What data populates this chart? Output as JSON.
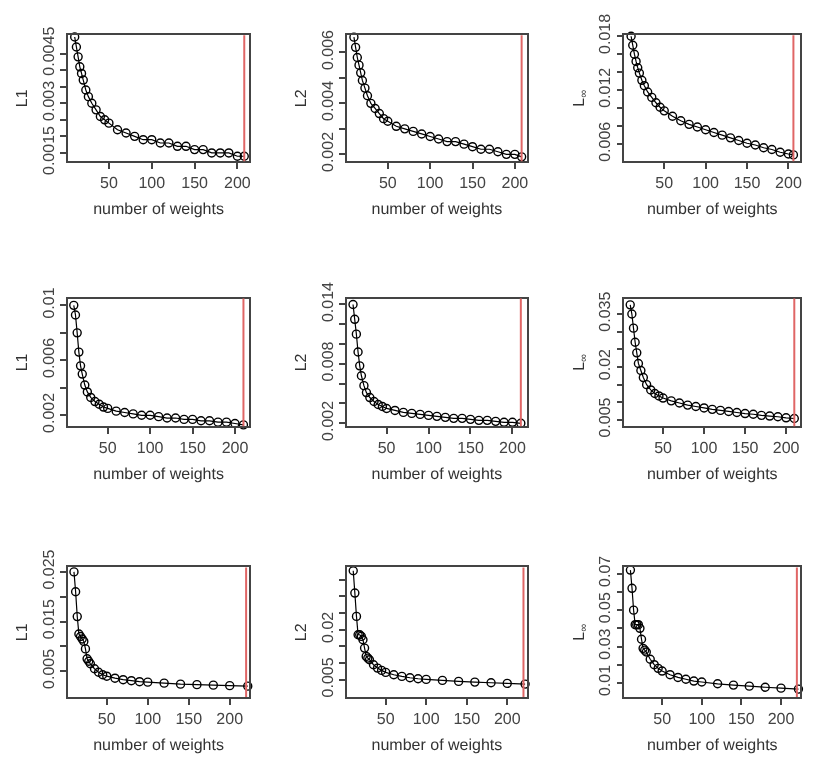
{
  "chart_data": [
    {
      "type": "line",
      "xlabel": "number of weights",
      "ylabel": "L1",
      "marker": "circle",
      "xlim": [
        2,
        214
      ],
      "xticks": [
        50,
        100,
        150,
        200
      ],
      "ylim": [
        0.00125,
        0.00505
      ],
      "yticks": [
        0.0015,
        {
          "value": 0.002,
          "label": null
        },
        {
          "value": 0.0025,
          "label": null
        },
        0.003,
        {
          "value": 0.0035,
          "label": null
        },
        {
          "value": 0.004,
          "label": null
        },
        0.0045
      ],
      "ref_lines": [
        {
          "axis": "x",
          "value": 208,
          "color": "#e06666"
        }
      ],
      "x": [
        10,
        12,
        14,
        16,
        18,
        20,
        23,
        26,
        30,
        35,
        40,
        45,
        50,
        60,
        70,
        80,
        90,
        100,
        110,
        120,
        130,
        140,
        150,
        160,
        170,
        180,
        190,
        200,
        208
      ],
      "series": [
        {
          "color": "#000000",
          "values": [
            0.005,
            0.0047,
            0.0044,
            0.0041,
            0.0039,
            0.0037,
            0.0034,
            0.0032,
            0.003,
            0.0028,
            0.0026,
            0.0025,
            0.0024,
            0.0022,
            0.0021,
            0.002,
            0.0019,
            0.0019,
            0.0018,
            0.0018,
            0.0017,
            0.0017,
            0.0016,
            0.0016,
            0.0015,
            0.0015,
            0.0015,
            0.0014,
            0.0014
          ]
        }
      ]
    },
    {
      "type": "line",
      "xlabel": "number of weights",
      "ylabel": "L2",
      "marker": "circle",
      "xlim": [
        2,
        214
      ],
      "xticks": [
        50,
        100,
        150,
        200
      ],
      "ylim": [
        0.00173,
        0.00667
      ],
      "yticks": [
        0.002,
        {
          "value": 0.003,
          "label": null
        },
        0.004,
        {
          "value": 0.005,
          "label": null
        },
        0.006
      ],
      "ref_lines": [
        {
          "axis": "x",
          "value": 208,
          "color": "#e06666"
        }
      ],
      "x": [
        10,
        12,
        14,
        16,
        18,
        20,
        23,
        26,
        30,
        35,
        40,
        45,
        50,
        60,
        70,
        80,
        90,
        100,
        110,
        120,
        130,
        140,
        150,
        160,
        170,
        180,
        190,
        200,
        208
      ],
      "series": [
        {
          "color": "#000000",
          "values": [
            0.0066,
            0.0062,
            0.0058,
            0.0055,
            0.0052,
            0.0049,
            0.0046,
            0.0043,
            0.004,
            0.0038,
            0.0036,
            0.0034,
            0.0033,
            0.0031,
            0.003,
            0.0029,
            0.0028,
            0.0027,
            0.0026,
            0.0025,
            0.0025,
            0.0024,
            0.0023,
            0.0022,
            0.0022,
            0.0021,
            0.002,
            0.002,
            0.0019
          ]
        }
      ]
    },
    {
      "type": "line",
      "xlabel": "number of weights",
      "ylabel": "L$_{∞}$",
      "marker": "circle",
      "xlim": [
        2,
        214
      ],
      "xticks": [
        50,
        100,
        150,
        200
      ],
      "ylim": [
        0.0041,
        0.0181
      ],
      "yticks": [
        0.006,
        {
          "value": 0.008,
          "label": null
        },
        {
          "value": 0.01,
          "label": null
        },
        0.012,
        {
          "value": 0.014,
          "label": null
        },
        {
          "value": 0.016,
          "label": null
        },
        0.018
      ],
      "ref_lines": [
        {
          "axis": "x",
          "value": 206,
          "color": "#e06666"
        }
      ],
      "x": [
        10,
        12,
        14,
        16,
        18,
        20,
        23,
        26,
        30,
        35,
        40,
        45,
        50,
        60,
        70,
        80,
        90,
        100,
        110,
        120,
        130,
        140,
        150,
        160,
        170,
        180,
        190,
        200,
        206
      ],
      "series": [
        {
          "color": "#000000",
          "values": [
            0.018,
            0.017,
            0.016,
            0.0152,
            0.0145,
            0.0139,
            0.0131,
            0.0125,
            0.0118,
            0.0112,
            0.0106,
            0.0101,
            0.0097,
            0.0091,
            0.0086,
            0.0082,
            0.0079,
            0.0076,
            0.0073,
            0.007,
            0.0067,
            0.0064,
            0.0061,
            0.0059,
            0.0056,
            0.0054,
            0.0051,
            0.0049,
            0.0048
          ]
        }
      ]
    },
    {
      "type": "line",
      "xlabel": "number of weights",
      "ylabel": "L1",
      "marker": "circle",
      "xlim": [
        3,
        217
      ],
      "xticks": [
        50,
        100,
        150,
        200
      ],
      "ylim": [
        0.0012,
        0.0105
      ],
      "yticks": [
        0.002,
        {
          "value": 0.004,
          "label": null
        },
        0.006,
        {
          "value": 0.008,
          "label": null
        },
        0.01
      ],
      "ref_lines": [
        {
          "axis": "x",
          "value": 210,
          "color": "#e06666"
        }
      ],
      "x": [
        10,
        12,
        14,
        16,
        18,
        20,
        23,
        26,
        30,
        35,
        40,
        45,
        50,
        60,
        70,
        80,
        90,
        100,
        110,
        120,
        130,
        140,
        150,
        160,
        170,
        180,
        190,
        200,
        210
      ],
      "series": [
        {
          "color": "#000000",
          "values": [
            0.01,
            0.0093,
            0.008,
            0.0066,
            0.0056,
            0.005,
            0.0042,
            0.0037,
            0.0033,
            0.003,
            0.0028,
            0.0026,
            0.0025,
            0.0023,
            0.0022,
            0.0021,
            0.002,
            0.002,
            0.0019,
            0.0018,
            0.0018,
            0.0017,
            0.0017,
            0.0016,
            0.0016,
            0.0015,
            0.0015,
            0.0014,
            0.0013
          ]
        }
      ]
    },
    {
      "type": "line",
      "xlabel": "number of weights",
      "ylabel": "L2",
      "marker": "circle",
      "xlim": [
        3,
        217
      ],
      "xticks": [
        50,
        100,
        150,
        200
      ],
      "ylim": [
        0.0017,
        0.0146
      ],
      "yticks": [
        0.002,
        {
          "value": 0.004,
          "label": null
        },
        {
          "value": 0.006,
          "label": null
        },
        0.008,
        {
          "value": 0.01,
          "label": null
        },
        {
          "value": 0.012,
          "label": null
        },
        0.014
      ],
      "ref_lines": [
        {
          "axis": "x",
          "value": 210,
          "color": "#e06666"
        }
      ],
      "x": [
        10,
        12,
        14,
        16,
        18,
        20,
        23,
        26,
        30,
        35,
        40,
        45,
        50,
        60,
        70,
        80,
        90,
        100,
        110,
        120,
        130,
        140,
        150,
        160,
        170,
        180,
        190,
        200,
        210
      ],
      "series": [
        {
          "color": "#000000",
          "values": [
            0.014,
            0.0125,
            0.011,
            0.0092,
            0.0078,
            0.0068,
            0.0058,
            0.0051,
            0.0046,
            0.0042,
            0.0039,
            0.0037,
            0.0035,
            0.0033,
            0.0031,
            0.003,
            0.0029,
            0.0028,
            0.0027,
            0.0026,
            0.0025,
            0.0025,
            0.0024,
            0.0023,
            0.0023,
            0.0022,
            0.0021,
            0.0021,
            0.002
          ]
        }
      ]
    },
    {
      "type": "line",
      "xlabel": "number of weights",
      "ylabel": "L$_{∞}$",
      "marker": "circle",
      "xlim": [
        3,
        217
      ],
      "xticks": [
        50,
        100,
        150,
        200
      ],
      "ylim": [
        0.0032,
        0.0394
      ],
      "yticks": [
        0.005,
        {
          "value": 0.01,
          "label": null
        },
        {
          "value": 0.015,
          "label": null
        },
        0.02,
        {
          "value": 0.025,
          "label": null
        },
        {
          "value": 0.03,
          "label": null
        },
        0.035
      ],
      "ref_lines": [
        {
          "axis": "x",
          "value": 210,
          "color": "#e06666"
        }
      ],
      "x": [
        10,
        12,
        14,
        16,
        18,
        20,
        23,
        26,
        30,
        35,
        40,
        45,
        50,
        60,
        70,
        80,
        90,
        100,
        110,
        120,
        130,
        140,
        150,
        160,
        170,
        180,
        190,
        200,
        210
      ],
      "series": [
        {
          "color": "#000000",
          "values": [
            0.0376,
            0.035,
            0.031,
            0.027,
            0.024,
            0.021,
            0.019,
            0.017,
            0.015,
            0.0135,
            0.0125,
            0.0118,
            0.0112,
            0.0104,
            0.0098,
            0.0092,
            0.0088,
            0.0084,
            0.008,
            0.0077,
            0.0074,
            0.0071,
            0.0068,
            0.0066,
            0.0063,
            0.0061,
            0.0059,
            0.0056,
            0.0054
          ]
        }
      ]
    },
    {
      "type": "line",
      "xlabel": "number of weights",
      "ylabel": "L1",
      "marker": "circle",
      "xlim": [
        2.5,
        224
      ],
      "xticks": [
        50,
        100,
        150,
        200
      ],
      "ylim": [
        -0.0002,
        0.0259
      ],
      "yticks": [
        0.005,
        {
          "value": 0.01,
          "label": null
        },
        0.015,
        {
          "value": 0.02,
          "label": null
        },
        0.025
      ],
      "ref_lines": [
        {
          "axis": "x",
          "value": 220,
          "color": "#e06666"
        }
      ],
      "x": [
        10,
        12,
        14,
        16,
        18,
        20,
        22,
        24,
        26,
        28,
        30,
        35,
        40,
        45,
        50,
        60,
        70,
        80,
        90,
        100,
        120,
        140,
        160,
        180,
        200,
        222
      ],
      "series": [
        {
          "color": "#000000",
          "values": [
            0.025,
            0.021,
            0.016,
            0.0125,
            0.012,
            0.0115,
            0.011,
            0.0095,
            0.0075,
            0.007,
            0.0065,
            0.0055,
            0.0048,
            0.0043,
            0.004,
            0.0036,
            0.0033,
            0.0031,
            0.0029,
            0.0028,
            0.0026,
            0.0024,
            0.0023,
            0.0022,
            0.0021,
            0.002
          ]
        }
      ]
    },
    {
      "type": "line",
      "xlabel": "number of weights",
      "ylabel": "L2",
      "marker": "circle",
      "xlim": [
        2.5,
        224
      ],
      "xticks": [
        50,
        100,
        150,
        200
      ],
      "ylim": [
        -0.0002,
        0.0387
      ],
      "yticks": [
        0.005,
        {
          "value": 0.01,
          "label": null
        },
        {
          "value": 0.015,
          "label": null
        },
        0.02,
        {
          "value": 0.025,
          "label": null
        },
        {
          "value": 0.03,
          "label": null
        },
        {
          "value": 0.035,
          "label": null
        }
      ],
      "ref_lines": [
        {
          "axis": "x",
          "value": 220,
          "color": "#e06666"
        }
      ],
      "x": [
        10,
        12,
        14,
        16,
        18,
        20,
        22,
        24,
        26,
        28,
        30,
        35,
        40,
        45,
        50,
        60,
        70,
        80,
        90,
        100,
        120,
        140,
        160,
        180,
        200,
        222
      ],
      "series": [
        {
          "color": "#000000",
          "values": [
            0.0377,
            0.031,
            0.024,
            0.0185,
            0.0185,
            0.018,
            0.017,
            0.0145,
            0.012,
            0.0115,
            0.011,
            0.0095,
            0.0085,
            0.0078,
            0.0072,
            0.0065,
            0.006,
            0.0056,
            0.0053,
            0.0051,
            0.0048,
            0.0045,
            0.0043,
            0.0041,
            0.0039,
            0.0037
          ]
        }
      ]
    },
    {
      "type": "line",
      "xlabel": "number of weights",
      "ylabel": "L$_{∞}$",
      "marker": "circle",
      "xlim": [
        2.5,
        224
      ],
      "xticks": [
        50,
        100,
        150,
        200
      ],
      "ylim": [
        0.0022,
        0.0735
      ],
      "yticks": [
        0.01,
        {
          "value": 0.02,
          "label": null
        },
        0.03,
        {
          "value": 0.04,
          "label": null
        },
        0.05,
        {
          "value": 0.06,
          "label": null
        },
        0.07
      ],
      "ref_lines": [
        {
          "axis": "x",
          "value": 220,
          "color": "#e06666"
        }
      ],
      "x": [
        10,
        12,
        14,
        16,
        18,
        20,
        22,
        24,
        26,
        28,
        30,
        35,
        40,
        45,
        50,
        60,
        70,
        80,
        90,
        100,
        120,
        140,
        160,
        180,
        200,
        222
      ],
      "series": [
        {
          "color": "#000000",
          "values": [
            0.072,
            0.062,
            0.05,
            0.042,
            0.042,
            0.042,
            0.04,
            0.034,
            0.029,
            0.028,
            0.027,
            0.023,
            0.02,
            0.018,
            0.0165,
            0.0145,
            0.013,
            0.012,
            0.011,
            0.0105,
            0.0095,
            0.0088,
            0.0082,
            0.0076,
            0.0071,
            0.0066
          ]
        }
      ]
    }
  ]
}
